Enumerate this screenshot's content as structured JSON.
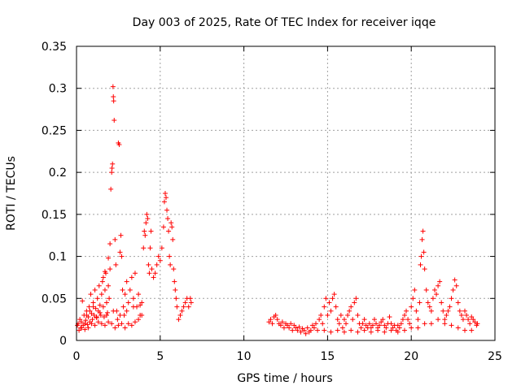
{
  "chart_data": {
    "type": "scatter",
    "title": "Day 003 of 2025, Rate Of TEC Index for receiver iqqe",
    "xlabel": "GPS time / hours",
    "ylabel": "ROTI / TECUs",
    "xlim": [
      0,
      25
    ],
    "ylim": [
      0,
      0.35
    ],
    "xticks": [
      "0",
      "5",
      "10",
      "15",
      "20",
      "25"
    ],
    "yticks": [
      "0",
      "0.05",
      "0.1",
      "0.15",
      "0.2",
      "0.25",
      "0.3",
      "0.35"
    ],
    "grid": true,
    "marker": "+",
    "color": "#ff0000",
    "series": [
      {
        "points": [
          [
            0.05,
            0.018
          ],
          [
            0.1,
            0.02
          ],
          [
            0.15,
            0.012
          ],
          [
            0.2,
            0.025
          ],
          [
            0.25,
            0.015
          ],
          [
            0.3,
            0.022
          ],
          [
            0.35,
            0.047
          ],
          [
            0.4,
            0.018
          ],
          [
            0.45,
            0.03
          ],
          [
            0.5,
            0.013
          ],
          [
            0.55,
            0.024
          ],
          [
            0.6,
            0.035
          ],
          [
            0.65,
            0.019
          ],
          [
            0.7,
            0.028
          ],
          [
            0.75,
            0.04
          ],
          [
            0.8,
            0.022
          ],
          [
            0.85,
            0.055
          ],
          [
            0.9,
            0.032
          ],
          [
            0.95,
            0.025
          ],
          [
            1.0,
            0.045
          ],
          [
            1.05,
            0.03
          ],
          [
            1.1,
            0.06
          ],
          [
            1.15,
            0.038
          ],
          [
            1.2,
            0.027
          ],
          [
            1.25,
            0.05
          ],
          [
            1.3,
            0.035
          ],
          [
            1.35,
            0.065
          ],
          [
            1.4,
            0.042
          ],
          [
            1.45,
            0.03
          ],
          [
            1.5,
            0.055
          ],
          [
            1.55,
            0.07
          ],
          [
            1.6,
            0.04
          ],
          [
            1.65,
            0.028
          ],
          [
            1.7,
            0.06
          ],
          [
            1.75,
            0.08
          ],
          [
            1.8,
            0.045
          ],
          [
            1.85,
            0.033
          ],
          [
            1.9,
            0.065
          ],
          [
            1.95,
            0.05
          ],
          [
            2.0,
            0.085
          ],
          [
            1.6,
            0.075
          ],
          [
            1.7,
            0.082
          ],
          [
            1.9,
            0.098
          ],
          [
            2.0,
            0.115
          ],
          [
            2.05,
            0.18
          ],
          [
            2.1,
            0.2
          ],
          [
            2.12,
            0.205
          ],
          [
            2.15,
            0.21
          ],
          [
            2.18,
            0.302
          ],
          [
            2.2,
            0.29
          ],
          [
            2.22,
            0.285
          ],
          [
            2.25,
            0.262
          ],
          [
            2.3,
            0.12
          ],
          [
            2.35,
            0.09
          ],
          [
            2.4,
            0.035
          ],
          [
            2.45,
            0.025
          ],
          [
            2.5,
            0.235
          ],
          [
            2.55,
            0.233
          ],
          [
            2.6,
            0.105
          ],
          [
            2.65,
            0.125
          ],
          [
            2.7,
            0.1
          ],
          [
            2.75,
            0.06
          ],
          [
            2.8,
            0.04
          ],
          [
            2.85,
            0.03
          ],
          [
            2.9,
            0.055
          ],
          [
            3.0,
            0.07
          ],
          [
            3.1,
            0.045
          ],
          [
            3.2,
            0.06
          ],
          [
            3.3,
            0.075
          ],
          [
            3.4,
            0.05
          ],
          [
            3.5,
            0.08
          ],
          [
            3.6,
            0.04
          ],
          [
            3.7,
            0.055
          ],
          [
            3.8,
            0.03
          ],
          [
            3.9,
            0.045
          ],
          [
            4.0,
            0.11
          ],
          [
            4.05,
            0.13
          ],
          [
            4.1,
            0.125
          ],
          [
            4.15,
            0.14
          ],
          [
            4.2,
            0.15
          ],
          [
            4.25,
            0.145
          ],
          [
            4.3,
            0.09
          ],
          [
            4.35,
            0.08
          ],
          [
            4.4,
            0.11
          ],
          [
            4.45,
            0.13
          ],
          [
            4.5,
            0.085
          ],
          [
            4.6,
            0.075
          ],
          [
            4.7,
            0.08
          ],
          [
            4.8,
            0.09
          ],
          [
            4.9,
            0.1
          ],
          [
            5.0,
            0.095
          ],
          [
            5.1,
            0.11
          ],
          [
            5.2,
            0.135
          ],
          [
            5.25,
            0.165
          ],
          [
            5.3,
            0.175
          ],
          [
            5.35,
            0.17
          ],
          [
            5.4,
            0.155
          ],
          [
            5.45,
            0.145
          ],
          [
            5.5,
            0.13
          ],
          [
            5.55,
            0.1
          ],
          [
            5.6,
            0.09
          ],
          [
            5.65,
            0.14
          ],
          [
            5.7,
            0.135
          ],
          [
            5.75,
            0.12
          ],
          [
            5.8,
            0.085
          ],
          [
            5.85,
            0.07
          ],
          [
            5.9,
            0.06
          ],
          [
            5.95,
            0.05
          ],
          [
            6.0,
            0.04
          ],
          [
            6.1,
            0.025
          ],
          [
            6.2,
            0.03
          ],
          [
            6.3,
            0.035
          ],
          [
            6.4,
            0.04
          ],
          [
            6.5,
            0.045
          ],
          [
            6.6,
            0.05
          ],
          [
            6.7,
            0.04
          ],
          [
            6.8,
            0.05
          ],
          [
            6.85,
            0.045
          ],
          [
            0.3,
            0.015
          ],
          [
            0.5,
            0.02
          ],
          [
            0.7,
            0.015
          ],
          [
            0.9,
            0.02
          ],
          [
            1.1,
            0.018
          ],
          [
            1.3,
            0.022
          ],
          [
            1.5,
            0.02
          ],
          [
            1.7,
            0.018
          ],
          [
            1.9,
            0.022
          ],
          [
            2.1,
            0.02
          ],
          [
            2.3,
            0.015
          ],
          [
            2.5,
            0.018
          ],
          [
            2.7,
            0.02
          ],
          [
            2.9,
            0.015
          ],
          [
            3.1,
            0.02
          ],
          [
            3.3,
            0.018
          ],
          [
            3.5,
            0.022
          ],
          [
            3.7,
            0.025
          ],
          [
            3.9,
            0.03
          ],
          [
            1.2,
            0.028
          ],
          [
            1.4,
            0.033
          ],
          [
            1.8,
            0.03
          ],
          [
            2.2,
            0.035
          ],
          [
            2.6,
            0.03
          ],
          [
            3.0,
            0.035
          ],
          [
            3.4,
            0.04
          ],
          [
            3.8,
            0.042
          ],
          [
            0.6,
            0.03
          ],
          [
            0.8,
            0.035
          ],
          [
            1.0,
            0.04
          ],
          [
            11.5,
            0.022
          ],
          [
            11.6,
            0.025
          ],
          [
            11.7,
            0.02
          ],
          [
            11.8,
            0.028
          ],
          [
            11.9,
            0.03
          ],
          [
            12.0,
            0.025
          ],
          [
            12.1,
            0.02
          ],
          [
            12.2,
            0.018
          ],
          [
            12.3,
            0.022
          ],
          [
            12.4,
            0.015
          ],
          [
            12.5,
            0.02
          ],
          [
            12.6,
            0.018
          ],
          [
            12.7,
            0.015
          ],
          [
            12.8,
            0.02
          ],
          [
            12.9,
            0.012
          ],
          [
            13.0,
            0.018
          ],
          [
            13.1,
            0.015
          ],
          [
            13.2,
            0.012
          ],
          [
            13.3,
            0.016
          ],
          [
            13.4,
            0.01
          ],
          [
            13.5,
            0.014
          ],
          [
            13.6,
            0.012
          ],
          [
            13.7,
            0.008
          ],
          [
            13.8,
            0.015
          ],
          [
            13.9,
            0.01
          ],
          [
            14.0,
            0.012
          ],
          [
            14.1,
            0.018
          ],
          [
            14.2,
            0.015
          ],
          [
            14.3,
            0.02
          ],
          [
            14.4,
            0.012
          ],
          [
            14.5,
            0.025
          ],
          [
            14.6,
            0.03
          ],
          [
            14.7,
            0.02
          ],
          [
            14.8,
            0.04
          ],
          [
            14.9,
            0.05
          ],
          [
            15.0,
            0.03
          ],
          [
            15.1,
            0.045
          ],
          [
            15.2,
            0.035
          ],
          [
            15.3,
            0.05
          ],
          [
            15.4,
            0.055
          ],
          [
            15.5,
            0.04
          ],
          [
            15.6,
            0.025
          ],
          [
            15.7,
            0.02
          ],
          [
            15.8,
            0.03
          ],
          [
            15.9,
            0.015
          ],
          [
            16.0,
            0.025
          ],
          [
            16.1,
            0.02
          ],
          [
            16.2,
            0.03
          ],
          [
            16.3,
            0.035
          ],
          [
            16.4,
            0.04
          ],
          [
            16.5,
            0.025
          ],
          [
            16.6,
            0.045
          ],
          [
            16.7,
            0.05
          ],
          [
            16.8,
            0.03
          ],
          [
            16.9,
            0.02
          ],
          [
            17.0,
            0.015
          ],
          [
            17.1,
            0.02
          ],
          [
            17.2,
            0.025
          ],
          [
            17.3,
            0.018
          ],
          [
            17.4,
            0.015
          ],
          [
            17.5,
            0.02
          ],
          [
            17.6,
            0.015
          ],
          [
            17.7,
            0.018
          ],
          [
            17.8,
            0.025
          ],
          [
            17.9,
            0.02
          ],
          [
            18.0,
            0.015
          ],
          [
            18.1,
            0.018
          ],
          [
            18.2,
            0.022
          ],
          [
            18.3,
            0.025
          ],
          [
            18.4,
            0.018
          ],
          [
            18.5,
            0.015
          ],
          [
            18.6,
            0.02
          ],
          [
            18.7,
            0.028
          ],
          [
            18.8,
            0.02
          ],
          [
            18.9,
            0.015
          ],
          [
            19.0,
            0.018
          ],
          [
            19.1,
            0.012
          ],
          [
            19.2,
            0.018
          ],
          [
            19.3,
            0.015
          ],
          [
            19.4,
            0.02
          ],
          [
            19.5,
            0.025
          ],
          [
            19.6,
            0.03
          ],
          [
            19.7,
            0.035
          ],
          [
            19.8,
            0.025
          ],
          [
            19.9,
            0.02
          ],
          [
            20.0,
            0.04
          ],
          [
            20.1,
            0.05
          ],
          [
            20.2,
            0.06
          ],
          [
            20.3,
            0.035
          ],
          [
            20.4,
            0.025
          ],
          [
            20.5,
            0.045
          ],
          [
            20.55,
            0.09
          ],
          [
            20.6,
            0.1
          ],
          [
            20.65,
            0.12
          ],
          [
            20.7,
            0.13
          ],
          [
            20.75,
            0.105
          ],
          [
            20.8,
            0.085
          ],
          [
            20.9,
            0.06
          ],
          [
            21.0,
            0.045
          ],
          [
            21.1,
            0.04
          ],
          [
            21.2,
            0.035
          ],
          [
            21.3,
            0.05
          ],
          [
            21.4,
            0.06
          ],
          [
            21.5,
            0.055
          ],
          [
            21.6,
            0.065
          ],
          [
            21.7,
            0.07
          ],
          [
            21.8,
            0.045
          ],
          [
            21.9,
            0.035
          ],
          [
            22.0,
            0.025
          ],
          [
            22.1,
            0.03
          ],
          [
            22.2,
            0.035
          ],
          [
            22.3,
            0.04
          ],
          [
            22.4,
            0.05
          ],
          [
            22.5,
            0.06
          ],
          [
            22.6,
            0.072
          ],
          [
            22.7,
            0.065
          ],
          [
            22.8,
            0.045
          ],
          [
            22.9,
            0.035
          ],
          [
            23.0,
            0.03
          ],
          [
            23.1,
            0.025
          ],
          [
            23.2,
            0.035
          ],
          [
            23.3,
            0.03
          ],
          [
            23.4,
            0.025
          ],
          [
            23.5,
            0.02
          ],
          [
            23.6,
            0.028
          ],
          [
            23.7,
            0.025
          ],
          [
            23.8,
            0.022
          ],
          [
            23.9,
            0.018
          ],
          [
            23.95,
            0.02
          ],
          [
            14.8,
            0.012
          ],
          [
            15.2,
            0.01
          ],
          [
            15.6,
            0.012
          ],
          [
            16.0,
            0.01
          ],
          [
            16.4,
            0.012
          ],
          [
            16.8,
            0.01
          ],
          [
            17.2,
            0.012
          ],
          [
            17.6,
            0.01
          ],
          [
            18.0,
            0.012
          ],
          [
            18.4,
            0.01
          ],
          [
            18.8,
            0.012
          ],
          [
            19.2,
            0.01
          ],
          [
            19.6,
            0.012
          ],
          [
            20.0,
            0.015
          ],
          [
            20.4,
            0.015
          ],
          [
            20.8,
            0.02
          ],
          [
            21.2,
            0.02
          ],
          [
            21.6,
            0.025
          ],
          [
            22.0,
            0.02
          ],
          [
            22.4,
            0.018
          ],
          [
            22.8,
            0.015
          ],
          [
            23.2,
            0.012
          ],
          [
            23.6,
            0.012
          ]
        ]
      }
    ]
  }
}
